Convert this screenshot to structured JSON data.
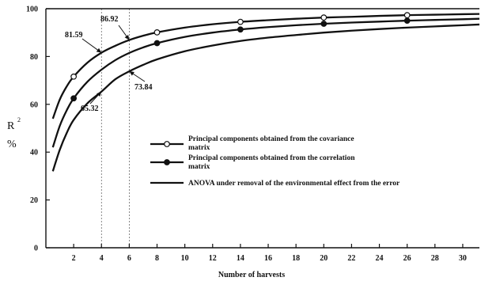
{
  "chart_data": {
    "type": "line",
    "xlabel": "Number of harvests",
    "ylabel": "R",
    "ylabel_superscript": "2",
    "ylabel_unit": "%",
    "xlim": [
      0,
      31.2
    ],
    "ylim": [
      0,
      100
    ],
    "xticks": [
      2,
      4,
      6,
      8,
      10,
      12,
      14,
      16,
      18,
      20,
      22,
      24,
      26,
      28,
      30
    ],
    "yticks": [
      0,
      20,
      40,
      60,
      80,
      100
    ],
    "reference_lines_x": [
      4,
      6
    ],
    "grid": false,
    "legend_position": "center-right",
    "series": [
      {
        "name": "Principal components obtained from the covariance matrix",
        "marker": "open-circle",
        "x": [
          0.5,
          1,
          1.5,
          2,
          3,
          4,
          5,
          6,
          7,
          8,
          10,
          12,
          14,
          16,
          18,
          20,
          22,
          24,
          26,
          28,
          30,
          31.2
        ],
        "y": [
          54,
          62,
          67.5,
          71.6,
          77.5,
          81.6,
          84.5,
          86.9,
          88.7,
          90.1,
          92.1,
          93.5,
          94.5,
          95.2,
          95.8,
          96.3,
          96.6,
          97.0,
          97.3,
          97.5,
          97.7,
          97.8
        ],
        "markers_x": [
          2,
          8,
          14,
          20,
          26
        ]
      },
      {
        "name": "Principal components obtained from the correlation matrix",
        "marker": "filled-circle",
        "x": [
          0.5,
          1,
          1.5,
          2,
          3,
          4,
          5,
          6,
          7,
          8,
          10,
          12,
          14,
          16,
          18,
          20,
          22,
          24,
          26,
          28,
          30,
          31.2
        ],
        "y": [
          42,
          51,
          57.5,
          62.5,
          69.5,
          74.5,
          78.5,
          81.5,
          83.8,
          85.6,
          88.2,
          90.0,
          91.3,
          92.3,
          93.1,
          93.7,
          94.2,
          94.6,
          95.0,
          95.3,
          95.6,
          95.8
        ],
        "markers_x": [
          2,
          8,
          14,
          20,
          26
        ]
      },
      {
        "name": "ANOVA under removal of the environmental effect from the error",
        "marker": "none",
        "x": [
          0.5,
          1,
          1.5,
          2,
          3,
          4,
          5,
          6,
          7,
          8,
          10,
          12,
          14,
          16,
          18,
          20,
          22,
          24,
          26,
          28,
          30,
          31.2
        ],
        "y": [
          32,
          41,
          48,
          53.5,
          60.5,
          65.3,
          70.5,
          73.8,
          76.5,
          78.8,
          82.2,
          84.6,
          86.5,
          87.9,
          89.0,
          90.0,
          90.8,
          91.5,
          92.1,
          92.6,
          93.1,
          93.4
        ]
      }
    ],
    "annotations": [
      {
        "text": "81.59",
        "x": 4,
        "y": 81.59
      },
      {
        "text": "86.92",
        "x": 6,
        "y": 86.92
      },
      {
        "text": "65.32",
        "x": 4,
        "y": 65.32
      },
      {
        "text": "73.84",
        "x": 6,
        "y": 73.84
      }
    ]
  }
}
